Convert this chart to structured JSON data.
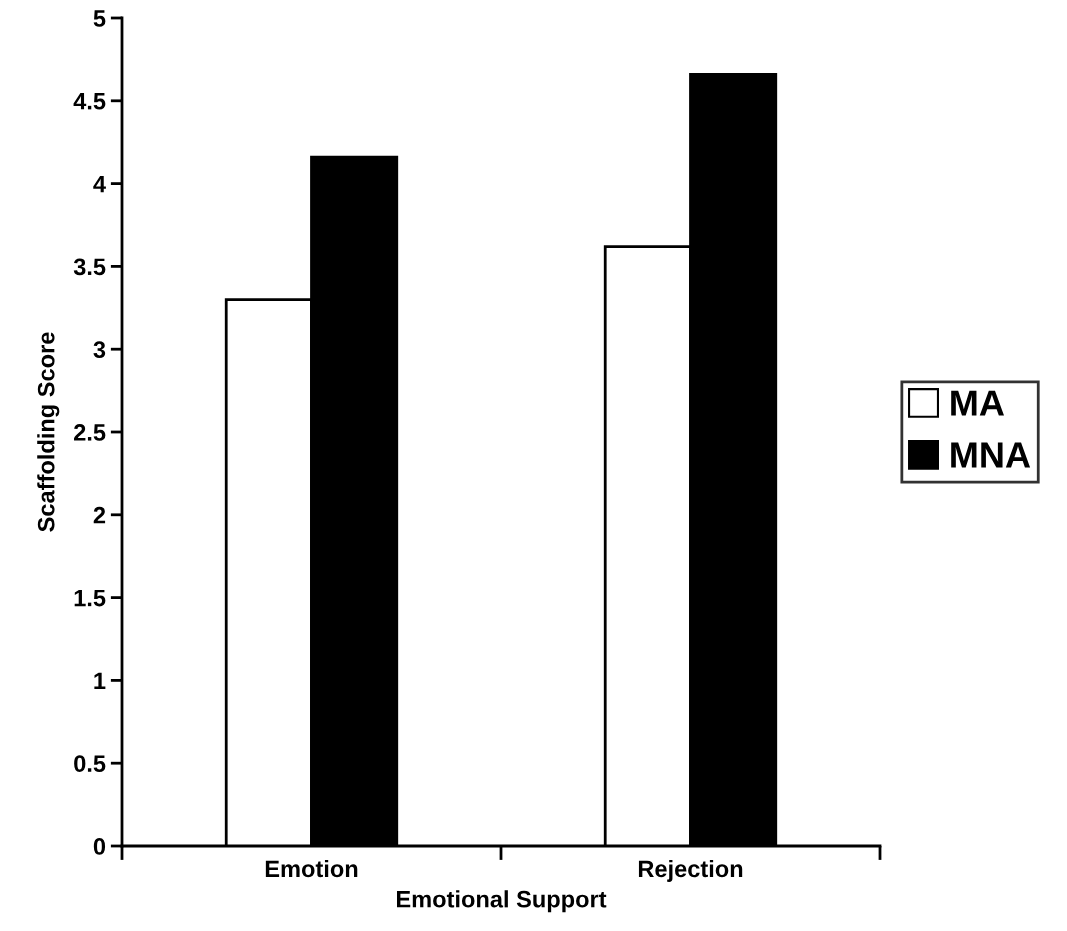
{
  "chart_data": {
    "type": "bar",
    "xlabel": "Emotional Support",
    "ylabel": "Scaffolding Score",
    "categories": [
      "Emotion",
      "Rejection"
    ],
    "series": [
      {
        "name": "MA",
        "color": "#ffffff",
        "values": [
          3.3,
          3.62
        ]
      },
      {
        "name": "MNA",
        "color": "#000000",
        "values": [
          4.16,
          4.66
        ]
      }
    ],
    "ylim": [
      0,
      5
    ],
    "yticks": [
      0,
      0.5,
      1,
      1.5,
      2,
      2.5,
      3,
      3.5,
      4,
      4.5,
      5
    ],
    "grid": false,
    "legend": "right"
  }
}
